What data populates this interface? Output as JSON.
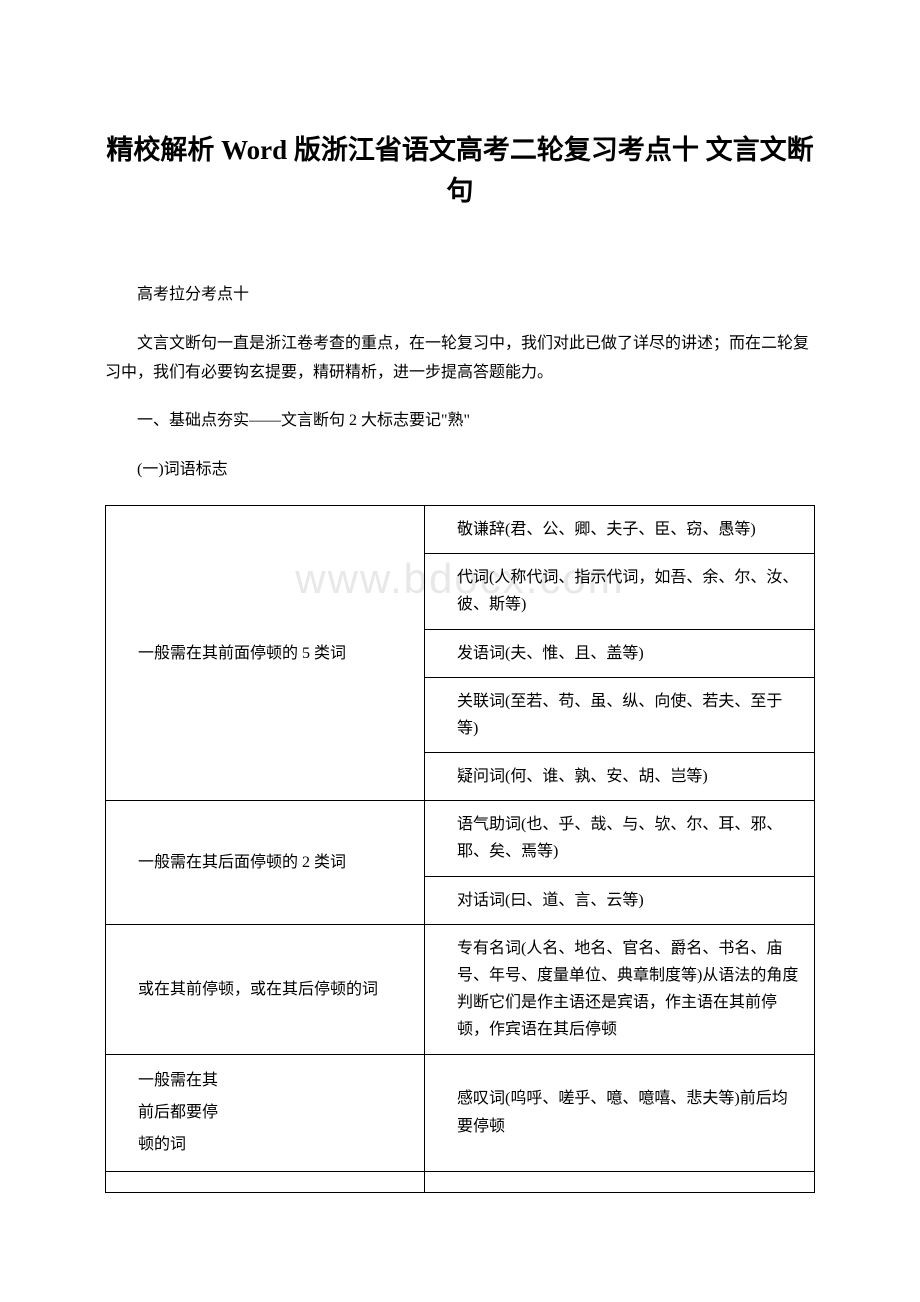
{
  "watermark": "www.bdocx.com",
  "title": "精校解析 Word 版浙江省语文高考二轮复习考点十 文言文断句",
  "p1": "高考拉分考点十",
  "p2": "文言文断句一直是浙江卷考查的重点，在一轮复习中，我们对此已做了详尽的讲述；而在二轮复习中，我们有必要钩玄提要，精研精析，进一步提高答题能力。",
  "p3": "一、基础点夯实——文言断句 2 大标志要记\"熟\"",
  "p4": "(一)词语标志",
  "table": {
    "rows": [
      {
        "left": "一般需在其前面停顿的 5 类词",
        "left_rowspan": 5,
        "rights": [
          "敬谦辞(君、公、卿、夫子、臣、窃、愚等)",
          "代词(人称代词、指示代词，如吾、余、尔、汝、彼、斯等)",
          "发语词(夫、惟、且、盖等)",
          "关联词(至若、苟、虽、纵、向使、若夫、至于等)",
          "疑问词(何、谁、孰、安、胡、岂等)"
        ]
      },
      {
        "left": "一般需在其后面停顿的 2 类词",
        "left_rowspan": 2,
        "rights": [
          "语气助词(也、乎、哉、与、欤、尔、耳、邪、耶、矣、焉等)",
          "对话词(曰、道、言、云等)"
        ]
      },
      {
        "left": "或在其前停顿，或在其后停顿的词",
        "left_rowspan": 1,
        "rights": [
          "专有名词(人名、地名、官名、爵名、书名、庙号、年号、度量单位、典章制度等)从语法的角度判断它们是作主语还是宾语，作主语在其前停顿，作宾语在其后停顿"
        ]
      },
      {
        "left_multiline": [
          "一般需在其",
          "前后都要停",
          "顿的词"
        ],
        "left_rowspan": 1,
        "rights": [
          "感叹词(呜呼、嗟乎、噫、噫嘻、悲夫等)前后均要停顿"
        ]
      }
    ]
  }
}
